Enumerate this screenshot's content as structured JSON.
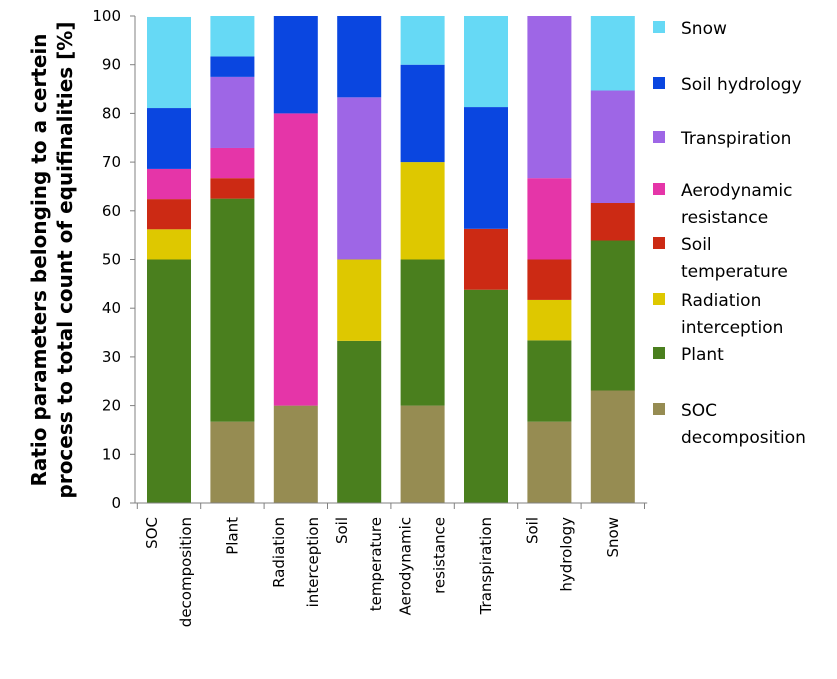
{
  "chart_data": {
    "type": "bar",
    "stacked": true,
    "ylabel_lines": [
      "Ratio parameters belonging to a certein",
      "process  to total count of equifinalities [%]"
    ],
    "xlabel": "",
    "ylim": [
      0,
      100
    ],
    "yticks": [
      0,
      10,
      20,
      30,
      40,
      50,
      60,
      70,
      80,
      90,
      100
    ],
    "grid": false,
    "legend_position": "right",
    "categories": [
      [
        "SOC",
        "decomposition"
      ],
      [
        "Plant"
      ],
      [
        "Radiation",
        "interception"
      ],
      [
        "Soil",
        "temperature"
      ],
      [
        "Aerodynamic",
        "resistance"
      ],
      [
        "Transpiration"
      ],
      [
        "Soil",
        "hydrology"
      ],
      [
        "Snow"
      ]
    ],
    "series": [
      {
        "name": "SOC decomposition",
        "legend_lines": [
          "SOC",
          "decomposition"
        ],
        "color": "#968C52",
        "values": [
          0,
          16.7,
          20,
          0,
          20,
          0,
          16.7,
          23.1
        ]
      },
      {
        "name": "Plant",
        "legend_lines": [
          "Plant"
        ],
        "color": "#4A7F1E",
        "values": [
          50,
          45.8,
          0,
          33.3,
          30,
          43.8,
          16.7,
          30.8
        ]
      },
      {
        "name": "Radiation interception",
        "legend_lines": [
          "Radiation",
          "interception"
        ],
        "color": "#DEC800",
        "values": [
          6.2,
          0,
          0,
          16.7,
          20,
          0,
          8.3,
          0
        ]
      },
      {
        "name": "Soil temperature",
        "legend_lines": [
          "Soil",
          "temperature"
        ],
        "color": "#CC2A14",
        "values": [
          6.2,
          4.2,
          0,
          0,
          0,
          12.5,
          8.3,
          7.7
        ]
      },
      {
        "name": "Aerodynamic resistance",
        "legend_lines": [
          "Aerodynamic",
          "resistance"
        ],
        "color": "#E535A8",
        "values": [
          6.2,
          6.2,
          60,
          0,
          0,
          0,
          16.7,
          0
        ]
      },
      {
        "name": "Transpiration",
        "legend_lines": [
          "Transpiration"
        ],
        "color": "#9E66E6",
        "values": [
          0,
          14.6,
          0,
          33.3,
          0,
          0,
          33.3,
          23.1
        ]
      },
      {
        "name": "Soil hydrology",
        "legend_lines": [
          "Soil hydrology"
        ],
        "color": "#0A46E0",
        "values": [
          12.5,
          4.2,
          20,
          16.7,
          20,
          25,
          0,
          0
        ]
      },
      {
        "name": "Snow",
        "legend_lines": [
          "Snow"
        ],
        "color": "#66D9F5",
        "values": [
          18.7,
          8.3,
          0,
          0,
          10,
          18.7,
          0,
          15.3
        ]
      }
    ]
  }
}
